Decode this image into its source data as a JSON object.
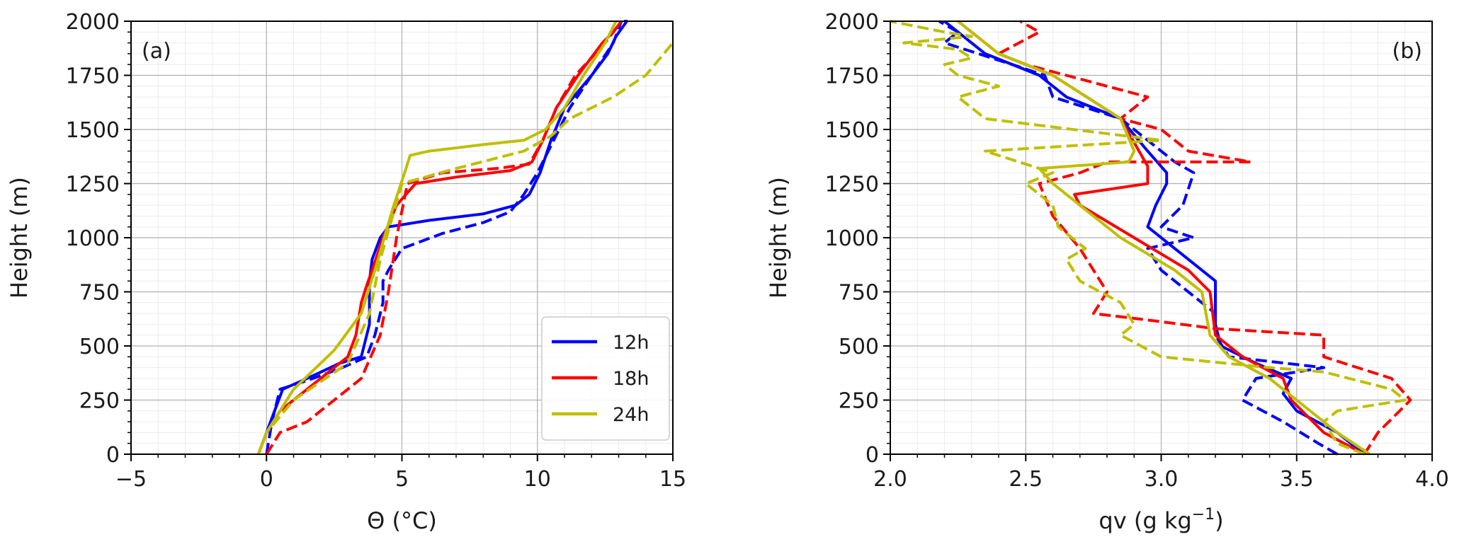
{
  "chart_data": [
    {
      "type": "line",
      "panel_label": "(a)",
      "xlabel": "Θ  (°C)",
      "ylabel": "Height (m)",
      "xlim": [
        -5,
        15
      ],
      "ylim": [
        0,
        2000
      ],
      "xticks": [
        -5,
        0,
        5,
        10,
        15
      ],
      "xtick_labels": [
        "−5",
        "0",
        "5",
        "10",
        "15"
      ],
      "yticks": [
        0,
        250,
        500,
        750,
        1000,
        1250,
        1500,
        1750,
        2000
      ],
      "ytick_labels": [
        "0",
        "250",
        "500",
        "750",
        "1000",
        "1250",
        "1500",
        "1750",
        "2000"
      ],
      "grid": true,
      "legend_position": "lower right",
      "legend": [
        {
          "label": "12h",
          "color": "#0000ff"
        },
        {
          "label": "18h",
          "color": "#ff0000"
        },
        {
          "label": "24h",
          "color": "#bfbf00"
        }
      ],
      "series": [
        {
          "name": "12h",
          "color": "#0000ff",
          "style": "solid",
          "x": [
            -0.3,
            0,
            0.3,
            0.6,
            1.5,
            2.7,
            3.5,
            3.8,
            3.8,
            3.9,
            4.2,
            4.5,
            6,
            8,
            9.2,
            9.7,
            10.1,
            10.5,
            11,
            12,
            12.6,
            12.9,
            13.3,
            13.2
          ],
          "y": [
            0,
            100,
            200,
            300,
            350,
            420,
            450,
            600,
            800,
            900,
            1000,
            1050,
            1080,
            1110,
            1150,
            1200,
            1300,
            1450,
            1600,
            1750,
            1850,
            1930,
            2000,
            2000
          ]
        },
        {
          "name": "12h",
          "color": "#0000ff",
          "style": "dashed",
          "x": [
            0,
            0.2,
            0.5,
            1.5,
            2.8,
            3.7,
            4,
            4.3,
            4.3,
            4.5,
            5,
            6.5,
            8,
            9,
            9.5,
            10,
            10.6,
            11.2,
            12,
            12.8,
            13.1
          ],
          "y": [
            0,
            150,
            300,
            340,
            400,
            450,
            550,
            700,
            800,
            850,
            950,
            1020,
            1070,
            1120,
            1200,
            1300,
            1450,
            1600,
            1750,
            1900,
            2000
          ]
        },
        {
          "name": "18h",
          "color": "#ff0000",
          "style": "solid",
          "x": [
            -0.3,
            0,
            0.5,
            1.5,
            3,
            3.3,
            3.5,
            3.7,
            3.9,
            4.3,
            4.8,
            5.5,
            7,
            9,
            9.8,
            10.2,
            10.7,
            11.5,
            12.4,
            12.8,
            13.1
          ],
          "y": [
            0,
            100,
            200,
            300,
            450,
            550,
            700,
            780,
            850,
            1000,
            1150,
            1250,
            1280,
            1310,
            1350,
            1450,
            1600,
            1750,
            1900,
            1950,
            2000
          ]
        },
        {
          "name": "18h",
          "color": "#ff0000",
          "style": "dashed",
          "x": [
            0,
            0.5,
            1.5,
            3.5,
            4.2,
            4.5,
            4.8,
            5.2,
            6.5,
            8.5,
            9.7,
            10.2,
            10.7,
            11.4,
            12.5,
            13.1
          ],
          "y": [
            0,
            100,
            150,
            350,
            550,
            750,
            1000,
            1250,
            1300,
            1320,
            1340,
            1450,
            1600,
            1750,
            1900,
            2000
          ]
        },
        {
          "name": "24h",
          "color": "#bfbf00",
          "style": "solid",
          "x": [
            -0.3,
            0,
            1,
            2.5,
            3.5,
            4,
            4.7,
            5.1,
            5.3,
            6,
            8,
            9.5,
            10.3,
            11,
            11.7,
            12.5,
            12.9
          ],
          "y": [
            0,
            100,
            300,
            480,
            650,
            850,
            1150,
            1300,
            1380,
            1400,
            1430,
            1450,
            1500,
            1600,
            1750,
            1900,
            2000
          ]
        },
        {
          "name": "24h",
          "color": "#bfbf00",
          "style": "dashed",
          "x": [
            -0.3,
            0,
            1,
            3,
            3.8,
            4.2,
            5,
            7,
            9.5,
            10.5,
            11.2,
            12.8,
            14,
            15
          ],
          "y": [
            0,
            100,
            250,
            420,
            650,
            900,
            1250,
            1320,
            1400,
            1470,
            1550,
            1650,
            1750,
            1900
          ]
        }
      ]
    },
    {
      "type": "line",
      "panel_label": "(b)",
      "xlabel": "qv  (g kg⁻¹)",
      "ylabel": "Height (m)",
      "xlim": [
        2.0,
        4.0
      ],
      "ylim": [
        0,
        2000
      ],
      "xticks": [
        2.0,
        2.5,
        3.0,
        3.5,
        4.0
      ],
      "xtick_labels": [
        "2.0",
        "2.5",
        "3.0",
        "3.5",
        "4.0"
      ],
      "yticks": [
        0,
        250,
        500,
        750,
        1000,
        1250,
        1500,
        1750,
        2000
      ],
      "ytick_labels": [
        "0",
        "250",
        "500",
        "750",
        "1000",
        "1250",
        "1500",
        "1750",
        "2000"
      ],
      "grid": true,
      "series": [
        {
          "name": "12h",
          "color": "#0000ff",
          "style": "solid",
          "x": [
            3.75,
            3.65,
            3.5,
            3.45,
            3.48,
            3.35,
            3.22,
            3.2,
            3.2,
            3.1,
            2.95,
            2.98,
            3.02,
            3.02,
            2.95,
            2.85,
            2.65,
            2.55,
            2.35,
            2.25,
            2.2
          ],
          "y": [
            0,
            100,
            200,
            280,
            350,
            420,
            500,
            600,
            800,
            900,
            1050,
            1150,
            1250,
            1300,
            1400,
            1550,
            1650,
            1750,
            1850,
            1950,
            2000
          ]
        },
        {
          "name": "12h",
          "color": "#0000ff",
          "style": "dashed",
          "x": [
            3.65,
            3.58,
            3.45,
            3.3,
            3.35,
            3.6,
            3.25,
            3.2,
            3.2,
            3.0,
            2.95,
            3.12,
            3.0,
            3.08,
            3.12,
            3.05,
            2.85,
            2.6,
            2.57,
            2.45,
            2.2,
            2.25,
            2.18
          ],
          "y": [
            0,
            50,
            150,
            250,
            350,
            400,
            450,
            550,
            650,
            850,
            950,
            1000,
            1050,
            1150,
            1300,
            1350,
            1550,
            1650,
            1750,
            1800,
            1900,
            1950,
            2000
          ]
        },
        {
          "name": "18h",
          "color": "#ff0000",
          "style": "solid",
          "x": [
            3.75,
            3.6,
            3.48,
            3.45,
            3.3,
            3.2,
            3.18,
            3.1,
            2.9,
            2.7,
            2.68,
            2.95,
            2.95,
            2.85,
            2.6,
            2.4,
            2.25
          ],
          "y": [
            0,
            100,
            250,
            350,
            450,
            550,
            750,
            850,
            1000,
            1150,
            1200,
            1250,
            1330,
            1550,
            1750,
            1850,
            2000
          ]
        },
        {
          "name": "18h",
          "color": "#ff0000",
          "style": "dashed",
          "x": [
            3.75,
            3.8,
            3.92,
            3.85,
            3.6,
            3.6,
            3.2,
            2.95,
            2.75,
            2.8,
            2.75,
            2.7,
            2.6,
            2.55,
            2.7,
            2.8,
            3.33,
            3.1,
            3.0,
            2.85,
            2.95,
            2.65,
            2.5,
            2.4,
            2.55,
            2.48
          ],
          "y": [
            0,
            100,
            250,
            350,
            450,
            550,
            580,
            620,
            650,
            750,
            850,
            950,
            1100,
            1250,
            1300,
            1350,
            1350,
            1400,
            1500,
            1550,
            1650,
            1750,
            1800,
            1850,
            1950,
            2000
          ]
        },
        {
          "name": "24h",
          "color": "#bfbf00",
          "style": "solid",
          "x": [
            3.77,
            3.65,
            3.5,
            3.4,
            3.25,
            3.18,
            3.15,
            3.05,
            2.85,
            2.6,
            2.55,
            2.88,
            2.9,
            2.85,
            2.6,
            2.4,
            2.25
          ],
          "y": [
            0,
            100,
            250,
            350,
            450,
            550,
            750,
            850,
            1000,
            1250,
            1320,
            1350,
            1400,
            1550,
            1750,
            1850,
            2000
          ]
        },
        {
          "name": "24h",
          "color": "#bfbf00",
          "style": "dashed",
          "x": [
            3.75,
            3.65,
            3.6,
            3.65,
            3.9,
            3.85,
            3.6,
            3.4,
            3.0,
            2.85,
            2.9,
            2.85,
            2.7,
            2.65,
            2.72,
            2.62,
            2.6,
            2.5,
            2.6,
            2.35,
            3.0,
            2.35,
            2.3,
            2.25,
            2.4,
            2.25,
            2.2,
            2.3,
            2.25,
            2.05,
            2.3,
            2.2,
            2.0
          ],
          "y": [
            0,
            50,
            150,
            200,
            250,
            300,
            380,
            400,
            450,
            550,
            600,
            700,
            800,
            900,
            950,
            1050,
            1150,
            1250,
            1300,
            1400,
            1450,
            1550,
            1600,
            1650,
            1700,
            1750,
            1800,
            1830,
            1870,
            1900,
            1930,
            1950,
            2000
          ]
        }
      ]
    }
  ]
}
